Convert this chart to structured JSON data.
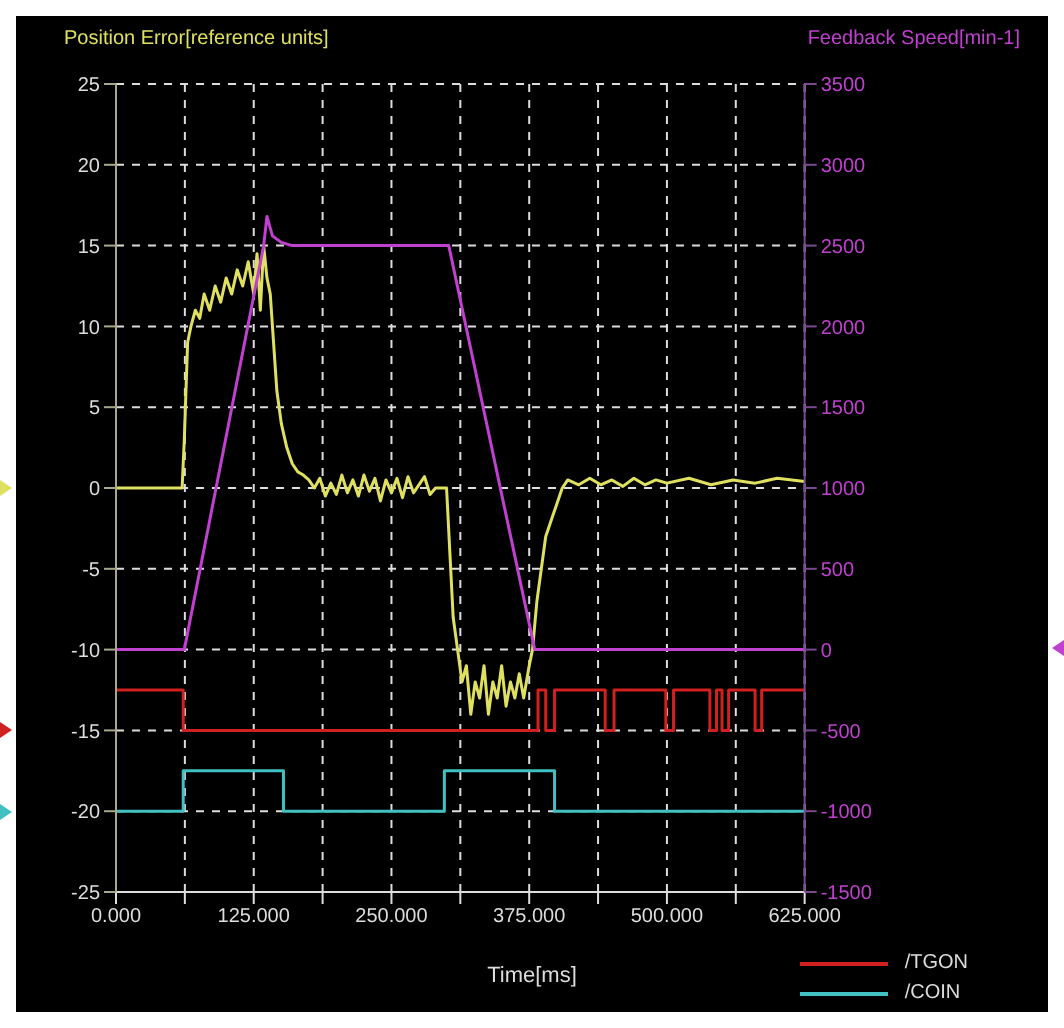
{
  "chart_data": {
    "type": "line",
    "ylabel": "Position Error[reference units]",
    "y2label": "Feedback Speed[min-1]",
    "xlabel": "Time[ms]",
    "xlim": [
      0,
      625
    ],
    "xticks": [
      {
        "value": 0,
        "label": "0.000"
      },
      {
        "value": 62.5,
        "label": null
      },
      {
        "value": 125,
        "label": "125.000"
      },
      {
        "value": 187.5,
        "label": null
      },
      {
        "value": 250,
        "label": "250.000"
      },
      {
        "value": 312.5,
        "label": null
      },
      {
        "value": 375,
        "label": "375.000"
      },
      {
        "value": 437.5,
        "label": null
      },
      {
        "value": 500,
        "label": "500.000"
      },
      {
        "value": 562.5,
        "label": null
      },
      {
        "value": 625,
        "label": "625.000"
      }
    ],
    "ylim": [
      -25,
      25
    ],
    "yticks": [
      -25,
      -20,
      -15,
      -10,
      -5,
      0,
      5,
      10,
      15,
      20,
      25
    ],
    "y2lim": [
      -1500,
      3500
    ],
    "y2ticks": [
      -1500,
      -1000,
      -500,
      0,
      500,
      1000,
      1500,
      2000,
      2500,
      3000,
      3500
    ],
    "grid": true,
    "legend": "bottom right",
    "marker": "none",
    "line_style": "solid",
    "series": [
      {
        "color": "#e0e060",
        "x": [
          0,
          60,
          62,
          65,
          68,
          72,
          76,
          80,
          85,
          90,
          95,
          100,
          105,
          110,
          115,
          120,
          125,
          128,
          131,
          134,
          137,
          140,
          143,
          146,
          150,
          155,
          160,
          165,
          170,
          175,
          180,
          185,
          190,
          195,
          200,
          205,
          210,
          215,
          220,
          225,
          230,
          235,
          240,
          245,
          250,
          255,
          260,
          265,
          270,
          280,
          285,
          290,
          300,
          303,
          306,
          310,
          314,
          318,
          322,
          326,
          330,
          334,
          338,
          342,
          346,
          350,
          354,
          358,
          362,
          366,
          370,
          375,
          378,
          382,
          386,
          390,
          395,
          400,
          405,
          410,
          420,
          430,
          440,
          450,
          460,
          470,
          480,
          490,
          500,
          520,
          540,
          560,
          580,
          600,
          625
        ],
        "values": [
          0,
          0,
          3,
          9,
          10,
          11,
          10.5,
          12,
          11,
          12.5,
          11.5,
          13,
          12,
          13.5,
          12.5,
          14,
          12,
          14.5,
          11,
          15,
          13,
          12,
          9,
          6,
          4,
          2.5,
          1.5,
          1,
          0.8,
          0.5,
          0,
          0.6,
          -0.5,
          0.3,
          -0.4,
          0.8,
          -0.3,
          0.5,
          -0.5,
          0.8,
          -0.2,
          0.6,
          -0.8,
          0.5,
          -0.3,
          0.6,
          -0.6,
          0.7,
          -0.3,
          0.7,
          -0.4,
          0,
          0,
          -4,
          -8,
          -10,
          -12,
          -11,
          -14,
          -12,
          -13,
          -11,
          -14,
          -12,
          -13,
          -11,
          -13.5,
          -12,
          -13,
          -11.5,
          -13,
          -11,
          -10,
          -7,
          -5,
          -3,
          -2,
          -1,
          0,
          0.5,
          0.2,
          0.6,
          0.2,
          0.5,
          0.1,
          0.6,
          0.2,
          0.5,
          0.3,
          0.6,
          0.2,
          0.5,
          0.3,
          0.6,
          0.4
        ]
      },
      {
        "color": "#c040d0",
        "axis": "y2",
        "x": [
          0,
          62,
          134,
          137,
          142,
          150,
          160,
          302,
          380,
          625
        ],
        "values": [
          0,
          0,
          2500,
          2680,
          2560,
          2520,
          2500,
          2500,
          0,
          0
        ]
      },
      {
        "name": "/TGON",
        "type": "step",
        "color": "#d02020",
        "x": [
          0,
          61,
          383,
          390,
          398,
          444,
          452,
          499,
          506,
          539,
          545,
          550,
          556,
          580,
          586,
          625
        ],
        "values": [
          -12.5,
          -15,
          -12.5,
          -15,
          -12.5,
          -15,
          -12.5,
          -15,
          -12.5,
          -15,
          -12.5,
          -15,
          -12.5,
          -15,
          -12.5,
          -12.5
        ]
      },
      {
        "name": "/COIN",
        "type": "step",
        "color": "#40c0c0",
        "x": [
          0,
          61,
          152,
          298,
          398,
          625
        ],
        "values": [
          -20,
          -17.5,
          -20,
          -17.5,
          -20,
          -20
        ]
      }
    ]
  }
}
